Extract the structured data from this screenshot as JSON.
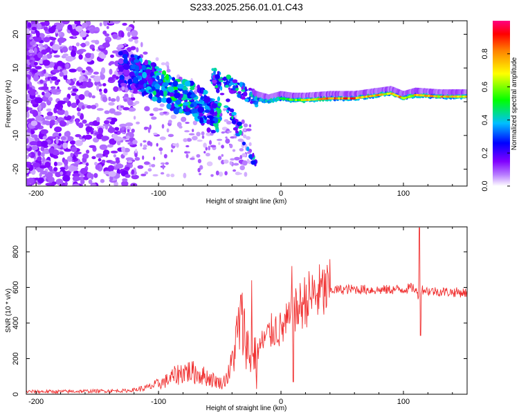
{
  "figure_title": "S233.2025.256.01.01.C43",
  "chart_data": [
    {
      "type": "heatmap",
      "title": "S233.2025.256.01.01.C43",
      "xlabel": "Height of straight line (km)",
      "ylabel": "Frequency (Hz)",
      "xlim": [
        -208,
        152
      ],
      "ylim": [
        -25,
        24
      ],
      "xticks": [
        "-200",
        "-100",
        "0",
        "100"
      ],
      "xtick_values": [
        -200,
        -100,
        0,
        100
      ],
      "yticks": [
        "-20",
        "-10",
        "0",
        "10",
        "20"
      ],
      "ytick_values": [
        -20,
        -10,
        0,
        10,
        20
      ],
      "colorbar": {
        "label": "Normalized spectral amplitude",
        "range": [
          0,
          1
        ],
        "ticks": [
          "0.0",
          "0.2",
          "0.4",
          "0.6",
          "0.8"
        ],
        "tick_values": [
          0.0,
          0.2,
          0.4,
          0.6,
          0.8
        ],
        "colors": [
          "#ffffff",
          "#9b30ff",
          "#0000ff",
          "#00bfff",
          "#00ff00",
          "#ffff00",
          "#ff8000",
          "#ff0000",
          "#ff0080"
        ]
      },
      "ridge": {
        "x": [
          -130,
          -110,
          -95,
          -85,
          -75,
          -65,
          -58,
          -50,
          -40,
          -30,
          -20,
          -10,
          0,
          10,
          20,
          40,
          60,
          80,
          90,
          100,
          110,
          130,
          150
        ],
        "y": [
          10,
          7,
          4,
          2,
          1,
          -1,
          -4,
          7,
          5,
          3,
          1,
          0,
          1,
          0.5,
          0.5,
          1,
          1,
          2,
          2.5,
          1,
          2,
          1.5,
          1.5
        ],
        "amplitude": [
          0.25,
          0.35,
          0.45,
          0.45,
          0.4,
          0.35,
          0.3,
          0.45,
          0.3,
          0.3,
          0.35,
          0.4,
          0.45,
          0.55,
          0.7,
          0.8,
          0.85,
          0.75,
          0.7,
          0.75,
          0.7,
          0.75,
          0.7
        ]
      }
    },
    {
      "type": "line",
      "xlabel": "Height of straight line (km)",
      "ylabel": "SNR (10 * v/v)",
      "xlim": [
        -208,
        152
      ],
      "ylim": [
        0,
        940
      ],
      "xticks": [
        "-200",
        "-100",
        "0",
        "100"
      ],
      "xtick_values": [
        -200,
        -100,
        0,
        100
      ],
      "yticks": [
        "0",
        "200",
        "400",
        "600",
        "800"
      ],
      "ytick_values": [
        0,
        200,
        400,
        600,
        800
      ],
      "series": [
        {
          "name": "SNR",
          "color": "#f03030",
          "x": [
            -208,
            -180,
            -150,
            -125,
            -110,
            -95,
            -85,
            -78,
            -70,
            -62,
            -55,
            -48,
            -42,
            -38,
            -33,
            -28,
            -25,
            -22,
            -18,
            -12,
            -5,
            0,
            5,
            8,
            12,
            20,
            30,
            40,
            60,
            80,
            100,
            108,
            112,
            115,
            120,
            135,
            152
          ],
          "values": [
            15,
            15,
            18,
            20,
            35,
            70,
            110,
            130,
            120,
            100,
            80,
            60,
            120,
            250,
            420,
            300,
            180,
            230,
            260,
            320,
            370,
            360,
            400,
            420,
            460,
            530,
            565,
            585,
            590,
            585,
            590,
            600,
            560,
            590,
            580,
            575,
            570
          ]
        }
      ],
      "spikes": [
        {
          "x": -24,
          "value": 640
        },
        {
          "x": -20,
          "value": 30
        },
        {
          "x": 9,
          "value": 720
        },
        {
          "x": 10,
          "value": 70
        },
        {
          "x": 113,
          "value": 935
        },
        {
          "x": 114,
          "value": 330
        }
      ]
    }
  ]
}
